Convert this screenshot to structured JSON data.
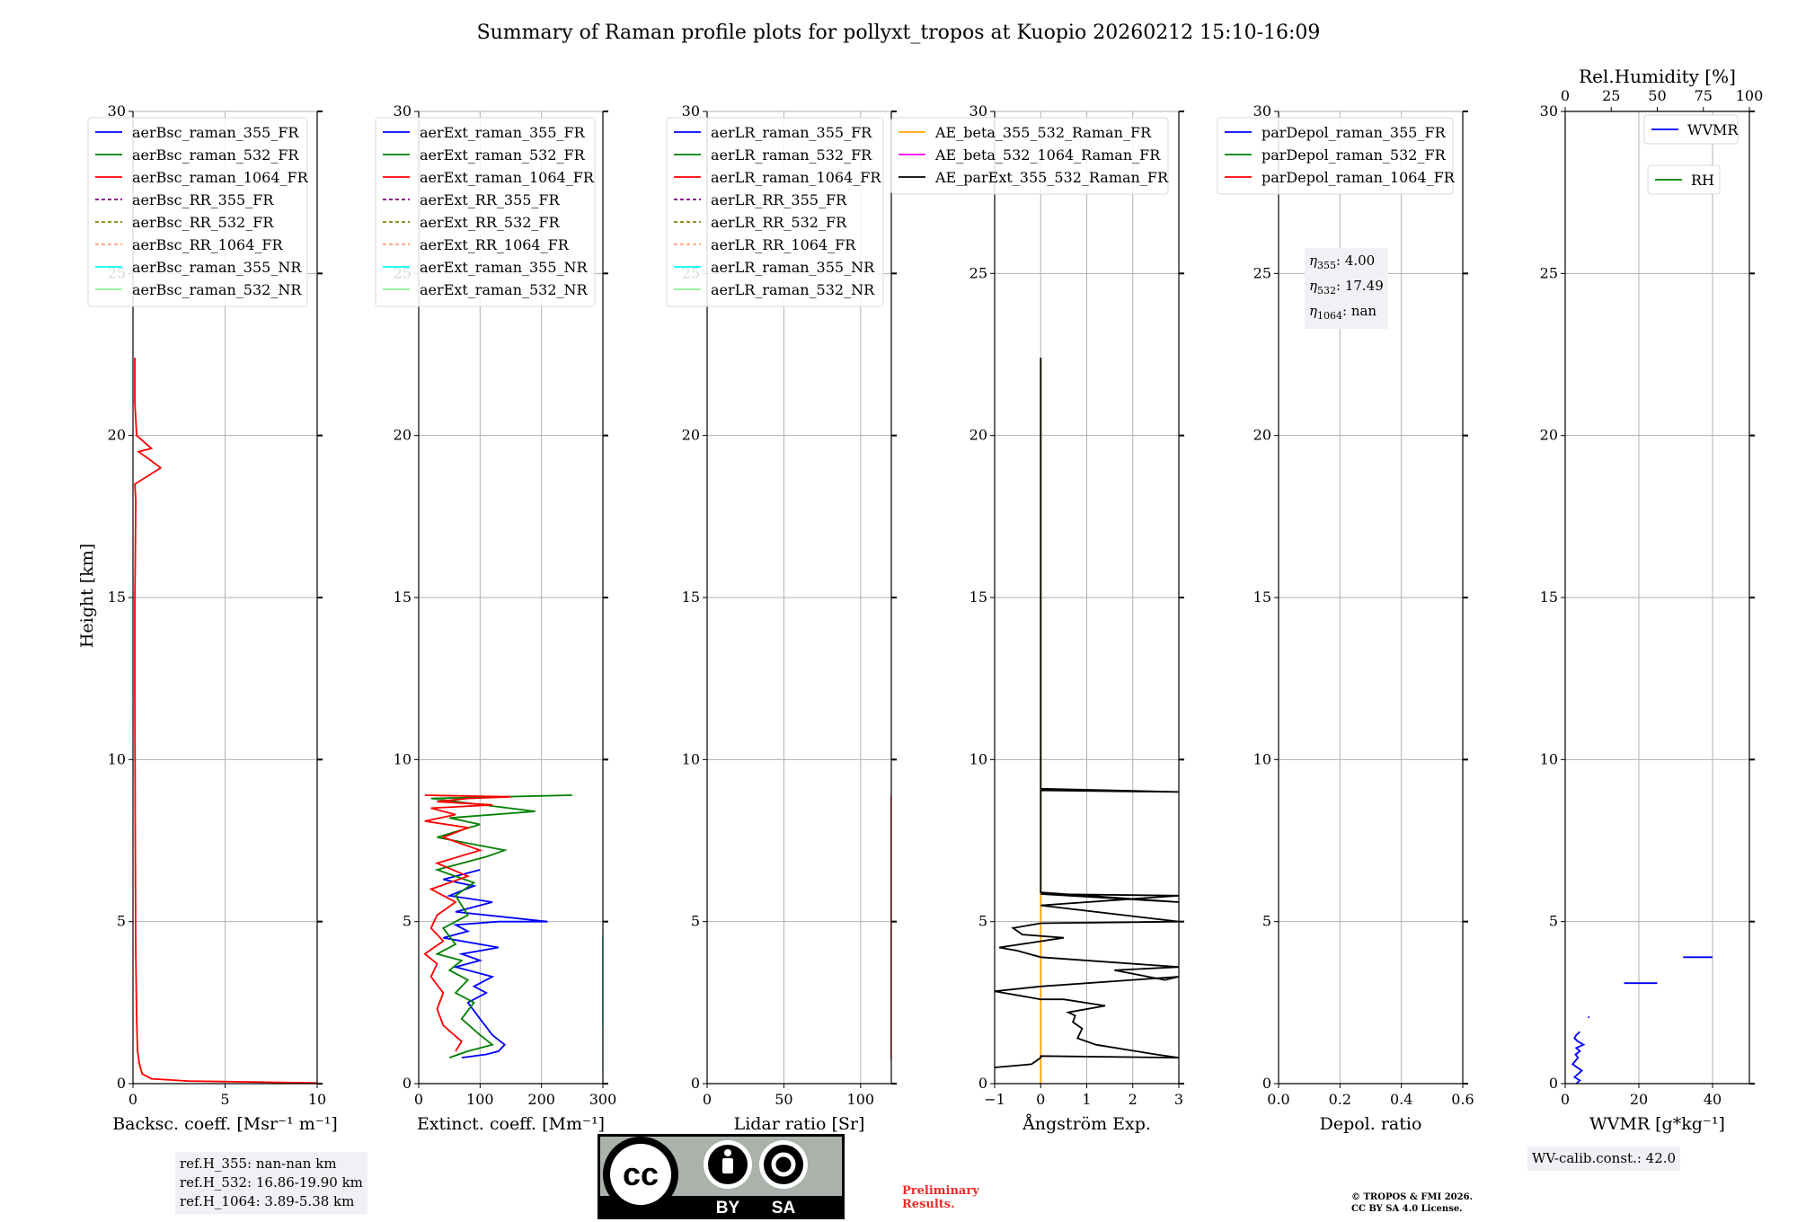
{
  "title": "Summary of Raman profile plots for pollyxt_tropos at Kuopio 20260212 15:10-16:09",
  "colors": {
    "c355": "#0000ff",
    "c532": "#008000",
    "c1064": "#ff0000",
    "rr355": "#800080",
    "rr532": "#808000",
    "rr1064": "#ffa07a",
    "nr355": "#00ffff",
    "nr532": "#90ee90",
    "ae_beta_355_532": "#ffa500",
    "ae_beta_532_1064": "#ff00ff",
    "ae_ext": "#000000",
    "grid": "#b0b0b0",
    "background": "#ffffff"
  },
  "chart_data": [
    {
      "type": "line",
      "id": "backscatter",
      "ylabel": "Height [km]",
      "xlabel": "Backsc. coeff. [Msr⁻¹ m⁻¹]",
      "xlim": [
        0,
        10
      ],
      "ylim": [
        0,
        30
      ],
      "xticks": [
        0,
        5,
        10
      ],
      "yticks": [
        0,
        5,
        10,
        15,
        20,
        25,
        30
      ],
      "legend": [
        "aerBsc_raman_355_FR",
        "aerBsc_raman_532_FR",
        "aerBsc_raman_1064_FR",
        "aerBsc_RR_355_FR",
        "aerBsc_RR_532_FR",
        "aerBsc_RR_1064_FR",
        "aerBsc_raman_355_NR",
        "aerBsc_raman_532_NR"
      ],
      "legend_styles": [
        "c355",
        "c532",
        "c1064",
        "rr355",
        "rr532",
        "rr1064",
        "nr355",
        "nr532"
      ],
      "legend_dashed": [
        false,
        false,
        false,
        true,
        true,
        true,
        false,
        false
      ],
      "series": [
        {
          "name": "aerBsc_raman_1064_FR",
          "color": "c1064",
          "x": [
            10,
            3,
            1,
            0.5,
            0.35,
            0.25,
            0.2,
            0.15,
            0.12,
            0.1,
            0.1,
            0.12,
            0.15,
            0.1,
            1.5,
            0.8,
            0.3,
            1,
            0.2,
            0.1,
            0.1
          ],
          "y": [
            0.02,
            0.08,
            0.15,
            0.3,
            0.6,
            1,
            2,
            4,
            8,
            12,
            15,
            16,
            18,
            18.5,
            19,
            19.3,
            19.5,
            19.6,
            20,
            21,
            22.4
          ]
        }
      ]
    },
    {
      "type": "line",
      "id": "extinction",
      "xlabel": "Extinct. coeff. [Mm⁻¹]",
      "xlim": [
        0,
        300
      ],
      "ylim": [
        0,
        30
      ],
      "xticks": [
        0,
        100,
        200,
        300
      ],
      "yticks": [
        0,
        5,
        10,
        15,
        20,
        25,
        30
      ],
      "legend": [
        "aerExt_raman_355_FR",
        "aerExt_raman_532_FR",
        "aerExt_raman_1064_FR",
        "aerExt_RR_355_FR",
        "aerExt_RR_532_FR",
        "aerExt_RR_1064_FR",
        "aerExt_raman_355_NR",
        "aerExt_raman_532_NR"
      ],
      "legend_styles": [
        "c355",
        "c532",
        "c1064",
        "rr355",
        "rr532",
        "rr1064",
        "nr355",
        "nr532"
      ],
      "legend_dashed": [
        false,
        false,
        false,
        true,
        true,
        true,
        false,
        false
      ],
      "series": [
        {
          "name": "aerExt_raman_355_FR",
          "color": "c355",
          "x": [
            70,
            110,
            130,
            140,
            120,
            100,
            80,
            110,
            90,
            120,
            60,
            100,
            70,
            130,
            40,
            80,
            60,
            130,
            210,
            60,
            120,
            50,
            90,
            40,
            100
          ],
          "y": [
            0.8,
            0.9,
            1.0,
            1.2,
            1.5,
            2.0,
            2.5,
            2.8,
            3.0,
            3.3,
            3.6,
            3.8,
            4.0,
            4.2,
            4.5,
            4.7,
            4.9,
            5.0,
            5.0,
            5.3,
            5.6,
            5.8,
            6.1,
            6.3,
            6.6
          ]
        },
        {
          "name": "aerExt_raman_532_FR",
          "color": "c532",
          "x": [
            50,
            80,
            120,
            100,
            70,
            90,
            60,
            80,
            50,
            70,
            30,
            60,
            40,
            80,
            60,
            90,
            30,
            110,
            140,
            30,
            100,
            50,
            190,
            20,
            250
          ],
          "y": [
            0.8,
            1.0,
            1.2,
            1.5,
            2.0,
            2.5,
            2.8,
            3.2,
            3.5,
            3.8,
            4.0,
            4.3,
            4.8,
            5.2,
            5.8,
            6.2,
            6.6,
            7.0,
            7.2,
            7.6,
            8.0,
            8.2,
            8.4,
            8.8,
            8.9
          ]
        },
        {
          "name": "aerExt_raman_1064_FR",
          "color": "c1064",
          "x": [
            60,
            70,
            40,
            30,
            40,
            20,
            30,
            10,
            40,
            20,
            30,
            60,
            20,
            80,
            30,
            100,
            40,
            80,
            10,
            60,
            20,
            120,
            30,
            80,
            150,
            10
          ],
          "y": [
            1.0,
            1.3,
            1.8,
            2.3,
            2.8,
            3.3,
            3.7,
            4.0,
            4.4,
            4.8,
            5.2,
            5.6,
            6.0,
            6.4,
            6.8,
            7.2,
            7.6,
            7.9,
            8.1,
            8.3,
            8.5,
            8.6,
            8.7,
            8.8,
            8.85,
            8.9
          ]
        },
        {
          "name": "aerExt_raman_355_NR",
          "color": "nr355",
          "x": [
            300,
            300,
            300,
            300,
            300,
            300,
            300,
            300,
            300,
            300,
            300,
            300,
            300,
            300,
            300,
            300,
            300,
            300,
            300,
            300,
            300,
            300
          ],
          "y": [
            1.7,
            1.9,
            2.1,
            2.3,
            2.5,
            2.7,
            2.9,
            3.0,
            3.1,
            3.2,
            3.3,
            3.4,
            3.5,
            3.6,
            3.7,
            3.8,
            3.9,
            4.0,
            4.2,
            4.3,
            4.4,
            4.55
          ]
        },
        {
          "name": "aerExt_raman_532_NR",
          "color": "nr532",
          "x": [
            300,
            300,
            300,
            300,
            300,
            300,
            300,
            300
          ],
          "y": [
            0.3,
            1.05,
            1.15,
            1.25,
            1.35,
            1.45,
            1.55,
            1.65
          ]
        }
      ]
    },
    {
      "type": "line",
      "id": "lidar_ratio",
      "xlabel": "Lidar ratio [Sr]",
      "xlim": [
        0,
        120
      ],
      "ylim": [
        0,
        30
      ],
      "xticks": [
        0,
        50,
        100
      ],
      "yticks": [
        0,
        5,
        10,
        15,
        20,
        25,
        30
      ],
      "legend": [
        "aerLR_raman_355_FR",
        "aerLR_raman_532_FR",
        "aerLR_raman_1064_FR",
        "aerLR_RR_355_FR",
        "aerLR_RR_532_FR",
        "aerLR_RR_1064_FR",
        "aerLR_raman_355_NR",
        "aerLR_raman_532_NR"
      ],
      "legend_styles": [
        "c355",
        "c532",
        "c1064",
        "rr355",
        "rr532",
        "rr1064",
        "nr355",
        "nr532"
      ],
      "legend_dashed": [
        false,
        false,
        false,
        true,
        true,
        true,
        false,
        false
      ],
      "series": [
        {
          "name": "aerLR_raman_1064_FR",
          "color": "c1064",
          "x": [
            120,
            120,
            120,
            120,
            120,
            120,
            120,
            120,
            120,
            120,
            120,
            120,
            120,
            120,
            120,
            120,
            120,
            120,
            120,
            120,
            120,
            120,
            120,
            120,
            120,
            120,
            120,
            120,
            120
          ],
          "y": [
            0.75,
            2.95,
            3.05,
            3.8,
            4.05,
            4.15,
            5.1,
            5.2,
            5.3,
            5.4,
            5.6,
            5.8,
            6.0,
            6.2,
            6.4,
            6.5,
            6.6,
            6.7,
            6.8,
            7.0,
            7.3,
            7.5,
            7.7,
            8.3,
            8.4,
            8.5,
            8.6,
            8.8,
            8.9
          ]
        }
      ]
    },
    {
      "type": "line",
      "id": "angstrom",
      "xlabel": "Ångström Exp.",
      "xlim": [
        -1,
        3
      ],
      "ylim": [
        0,
        30
      ],
      "xticks": [
        -1,
        0,
        1,
        2,
        3
      ],
      "yticks": [
        0,
        5,
        10,
        15,
        20,
        25,
        30
      ],
      "legend": [
        "AE_beta_355_532_Raman_FR",
        "AE_beta_532_1064_Raman_FR",
        "AE_parExt_355_532_Raman_FR"
      ],
      "legend_styles": [
        "ae_beta_355_532",
        "ae_beta_532_1064",
        "ae_ext"
      ],
      "legend_dashed": [
        false,
        false,
        false
      ],
      "series": [
        {
          "name": "AE_beta_355_532_Raman_FR",
          "color": "ae_beta_355_532",
          "x": [
            0,
            0
          ],
          "y": [
            0,
            22.4
          ]
        },
        {
          "name": "AE_parExt_355_532_Raman_FR",
          "color": "ae_ext",
          "x": [
            -1,
            -0.2,
            0,
            0,
            3,
            2.5,
            1.2,
            0.8,
            0.9,
            0.7,
            0.75,
            0.6,
            1.4,
            0.5,
            0,
            -1,
            0,
            3,
            2.7,
            1.6,
            3,
            0,
            -0.5,
            -0.9,
            0.5,
            -0.4,
            -0.6,
            0,
            3,
            0,
            3,
            0,
            3,
            0,
            0,
            3,
            0,
            0
          ],
          "y": [
            0.5,
            0.6,
            0.8,
            0.85,
            0.8,
            0.9,
            1.2,
            1.4,
            1.7,
            1.9,
            2.1,
            2.2,
            2.4,
            2.6,
            2.6,
            2.85,
            3.0,
            3.3,
            3.2,
            3.5,
            3.6,
            3.9,
            4.1,
            4.2,
            4.5,
            4.6,
            4.8,
            4.95,
            5.0,
            5.5,
            5.8,
            5.85,
            5.6,
            5.9,
            9.05,
            9.0,
            9.1,
            22.4
          ]
        }
      ]
    },
    {
      "type": "line",
      "id": "depol",
      "xlabel": "Depol. ratio",
      "xlim": [
        0,
        0.6
      ],
      "ylim": [
        0,
        30
      ],
      "xticks": [
        0.0,
        0.2,
        0.4,
        0.6
      ],
      "yticks": [
        0,
        5,
        10,
        15,
        20,
        25,
        30
      ],
      "legend": [
        "parDepol_raman_355_FR",
        "parDepol_raman_532_FR",
        "parDepol_raman_1064_FR"
      ],
      "legend_styles": [
        "c355",
        "c532",
        "c1064"
      ],
      "legend_dashed": [
        false,
        false,
        false
      ],
      "series": [],
      "eta": [
        {
          "label": "η",
          "sub": "355",
          "value": ": 4.00"
        },
        {
          "label": "η",
          "sub": "532",
          "value": ": 17.49"
        },
        {
          "label": "η",
          "sub": "1064",
          "value": ": nan"
        }
      ]
    },
    {
      "type": "line",
      "id": "wvmr",
      "xlabel": "WVMR [g*kg⁻¹]",
      "xlim": [
        0,
        50
      ],
      "ylim": [
        0,
        30
      ],
      "xticks": [
        0,
        20,
        40
      ],
      "yticks": [
        0,
        5,
        10,
        15,
        20,
        25,
        30
      ],
      "top_axis_label": "Rel.Humidity [%]",
      "top_xlim": [
        0,
        100
      ],
      "top_xticks": [
        0,
        25,
        50,
        75,
        100
      ],
      "legend": [
        "WVMR",
        "RH"
      ],
      "legend_styles": [
        "c355",
        "c532"
      ],
      "series": [
        {
          "name": "WVMR",
          "color": "c355",
          "x": [
            3,
            4,
            2.5,
            4.5,
            2,
            3.5,
            2.8,
            4,
            3,
            5,
            3.5,
            2.5,
            3,
            4
          ],
          "y": [
            0,
            0.1,
            0.2,
            0.4,
            0.6,
            0.8,
            0.9,
            1.0,
            1.1,
            1.2,
            1.3,
            1.4,
            1.5,
            1.6
          ]
        },
        {
          "name": "WVMR",
          "color": "c355",
          "x": [
            16,
            25
          ],
          "y": [
            3.1,
            3.1
          ]
        },
        {
          "name": "WVMR",
          "color": "c355",
          "x": [
            32,
            40
          ],
          "y": [
            3.9,
            3.9
          ]
        },
        {
          "name": "WVMR",
          "color": "c355",
          "x": [
            6.2,
            6.6
          ],
          "y": [
            2.05,
            2.05
          ]
        }
      ]
    }
  ],
  "annotations": {
    "ref_heights": [
      "ref.H_355: nan-nan km",
      "ref.H_532: 16.86-19.90 km",
      "ref.H_1064: 3.89-5.38 km"
    ],
    "wv_calib": "WV-calib.const.: 42.0",
    "preliminary": "Preliminary\nResults.",
    "copyright_1": "© TROPOS & FMI 2026.",
    "copyright_2": "CC BY SA 4.0 License.",
    "cc_badge": {
      "cc": "cc",
      "by": "BY",
      "sa": "SA"
    }
  }
}
